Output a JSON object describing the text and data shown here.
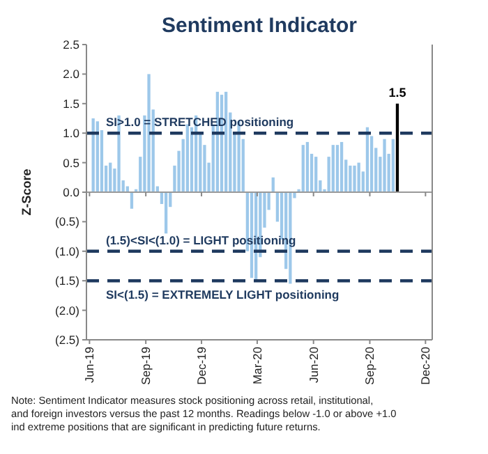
{
  "chart_data": {
    "type": "bar",
    "title": "Sentiment Indicator",
    "ylabel": "Z-Score",
    "x": [
      "2019-06-07",
      "2019-06-14",
      "2019-06-21",
      "2019-06-28",
      "2019-07-05",
      "2019-07-12",
      "2019-07-19",
      "2019-07-26",
      "2019-08-02",
      "2019-08-09",
      "2019-08-16",
      "2019-08-23",
      "2019-08-30",
      "2019-09-06",
      "2019-09-13",
      "2019-09-20",
      "2019-09-27",
      "2019-10-04",
      "2019-10-11",
      "2019-10-18",
      "2019-10-25",
      "2019-11-01",
      "2019-11-08",
      "2019-11-15",
      "2019-11-22",
      "2019-11-29",
      "2019-12-06",
      "2019-12-13",
      "2019-12-20",
      "2019-12-27",
      "2020-01-03",
      "2020-01-10",
      "2020-01-17",
      "2020-01-24",
      "2020-01-31",
      "2020-02-07",
      "2020-02-14",
      "2020-02-21",
      "2020-02-28",
      "2020-03-06",
      "2020-03-13",
      "2020-03-20",
      "2020-03-27",
      "2020-04-03",
      "2020-04-10",
      "2020-04-17",
      "2020-04-24",
      "2020-05-01",
      "2020-05-08",
      "2020-05-15",
      "2020-05-22",
      "2020-05-29",
      "2020-06-05",
      "2020-06-12",
      "2020-06-19",
      "2020-06-26",
      "2020-07-03",
      "2020-07-10",
      "2020-07-17",
      "2020-07-24",
      "2020-07-31",
      "2020-08-07",
      "2020-08-14",
      "2020-08-21",
      "2020-08-28",
      "2020-09-04",
      "2020-09-11",
      "2020-09-18",
      "2020-09-25",
      "2020-10-02",
      "2020-10-09",
      "2020-10-16"
    ],
    "values": [
      1.25,
      1.2,
      1.05,
      0.45,
      0.5,
      0.4,
      1.3,
      0.2,
      0.1,
      -0.28,
      0.05,
      0.6,
      1.3,
      2.0,
      1.4,
      0.1,
      -0.2,
      -0.7,
      -0.25,
      0.45,
      0.7,
      0.9,
      1.15,
      1.1,
      1.3,
      1.0,
      0.8,
      0.5,
      1.15,
      1.7,
      1.65,
      1.7,
      1.35,
      1.0,
      1.2,
      0.9,
      -1.0,
      -1.45,
      -1.5,
      -1.1,
      -0.6,
      -0.3,
      0.25,
      -0.5,
      -0.8,
      -1.3,
      -1.55,
      -0.1,
      0.05,
      0.8,
      0.85,
      0.65,
      0.6,
      0.2,
      0.05,
      0.6,
      0.8,
      0.8,
      0.85,
      0.55,
      0.45,
      0.45,
      0.5,
      0.35,
      1.1,
      0.95,
      0.75,
      0.6,
      0.9,
      0.65,
      0.9,
      1.5
    ],
    "colors": [
      "#9dc8ea",
      "#9dc8ea",
      "#9dc8ea",
      "#9dc8ea",
      "#9dc8ea",
      "#9dc8ea",
      "#9dc8ea",
      "#9dc8ea",
      "#9dc8ea",
      "#9dc8ea",
      "#9dc8ea",
      "#9dc8ea",
      "#9dc8ea",
      "#9dc8ea",
      "#9dc8ea",
      "#9dc8ea",
      "#9dc8ea",
      "#9dc8ea",
      "#9dc8ea",
      "#9dc8ea",
      "#9dc8ea",
      "#9dc8ea",
      "#9dc8ea",
      "#9dc8ea",
      "#9dc8ea",
      "#9dc8ea",
      "#9dc8ea",
      "#9dc8ea",
      "#9dc8ea",
      "#9dc8ea",
      "#9dc8ea",
      "#9dc8ea",
      "#9dc8ea",
      "#9dc8ea",
      "#9dc8ea",
      "#9dc8ea",
      "#9dc8ea",
      "#9dc8ea",
      "#9dc8ea",
      "#9dc8ea",
      "#9dc8ea",
      "#9dc8ea",
      "#9dc8ea",
      "#9dc8ea",
      "#9dc8ea",
      "#9dc8ea",
      "#9dc8ea",
      "#9dc8ea",
      "#9dc8ea",
      "#9dc8ea",
      "#9dc8ea",
      "#9dc8ea",
      "#9dc8ea",
      "#9dc8ea",
      "#9dc8ea",
      "#9dc8ea",
      "#9dc8ea",
      "#9dc8ea",
      "#9dc8ea",
      "#9dc8ea",
      "#9dc8ea",
      "#9dc8ea",
      "#9dc8ea",
      "#9dc8ea",
      "#9dc8ea",
      "#9dc8ea",
      "#9dc8ea",
      "#9dc8ea",
      "#9dc8ea",
      "#9dc8ea",
      "#9dc8ea",
      "#000000"
    ],
    "value_labels": [
      null,
      null,
      null,
      null,
      null,
      null,
      null,
      null,
      null,
      null,
      null,
      null,
      null,
      null,
      null,
      null,
      null,
      null,
      null,
      null,
      null,
      null,
      null,
      null,
      null,
      null,
      null,
      null,
      null,
      null,
      null,
      null,
      null,
      null,
      null,
      null,
      null,
      null,
      null,
      null,
      null,
      null,
      null,
      null,
      null,
      null,
      null,
      null,
      null,
      null,
      null,
      null,
      null,
      null,
      null,
      null,
      null,
      null,
      null,
      null,
      null,
      null,
      null,
      null,
      null,
      null,
      null,
      null,
      null,
      null,
      null,
      "1.5"
    ],
    "xlim": [
      "2019-05-27",
      "2020-12-12"
    ],
    "xticks": [
      {
        "value": "2019-06-01",
        "label": "Jun-19"
      },
      {
        "value": "2019-09-01",
        "label": "Sep-19"
      },
      {
        "value": "2019-12-01",
        "label": "Dec-19"
      },
      {
        "value": "2020-03-01",
        "label": "Mar-20"
      },
      {
        "value": "2020-06-01",
        "label": "Jun-20"
      },
      {
        "value": "2020-09-01",
        "label": "Sep-20"
      },
      {
        "value": "2020-12-01",
        "label": "Dec-20"
      }
    ],
    "ylim": [
      -2.5,
      2.5
    ],
    "yticks": [
      {
        "value": 2.5,
        "label": "2.5"
      },
      {
        "value": 2,
        "label": "2.0"
      },
      {
        "value": 1.5,
        "label": "1.5"
      },
      {
        "value": 1,
        "label": "1.0"
      },
      {
        "value": 0.5,
        "label": "0.5"
      },
      {
        "value": 0,
        "label": "0.0"
      },
      {
        "value": -0.5,
        "label": "(0.5)"
      },
      {
        "value": -1,
        "label": "(1.0)"
      },
      {
        "value": -1.5,
        "label": "(1.5)"
      },
      {
        "value": -2,
        "label": "(2.0)"
      },
      {
        "value": -2.5,
        "label": "(2.5)"
      }
    ],
    "ref_lines": [
      {
        "axis": "y",
        "value": 1,
        "label": "SI>1.0 = STRETCHED positioning",
        "color": "#1f3a5f",
        "line_style": "dashed"
      },
      {
        "axis": "y",
        "value": -1,
        "label": "(1.5)<SI<(1.0) = LIGHT positioning",
        "color": "#1f3a5f",
        "line_style": "dashed"
      },
      {
        "axis": "y",
        "value": -1.5,
        "label": "SI<(1.5) = EXTREMELY LIGHT positioning",
        "color": "#1f3a5f",
        "line_style": "dashed"
      }
    ],
    "annotations": [
      "Note: Sentiment Indicator measures stock positioning across retail, institutional, and foreign investors versus the past 12 months. Readings below -1.0 or above +1.0 ind extreme positions that are significant in predicting future returns."
    ],
    "grid": false
  }
}
